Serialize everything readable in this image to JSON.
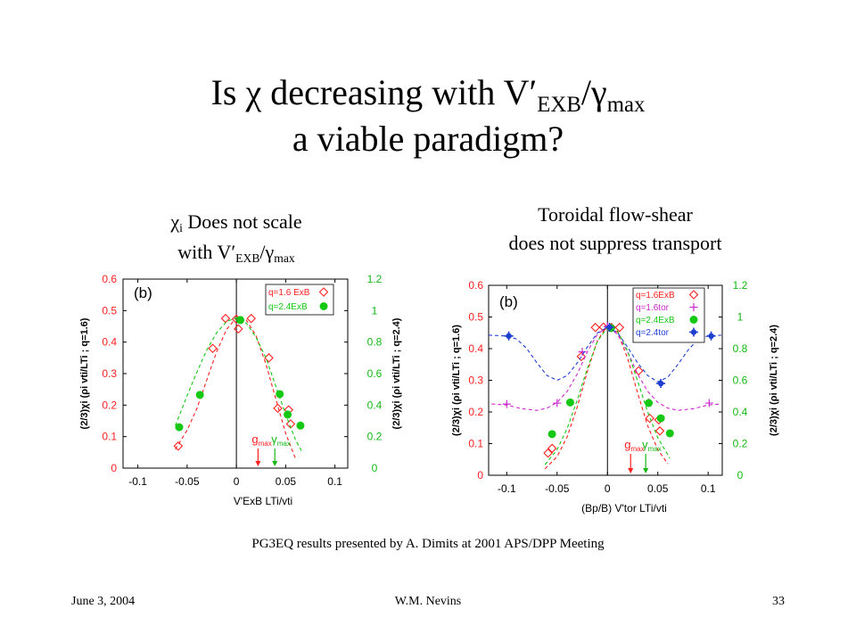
{
  "slide": {
    "title": {
      "line1_a": "Is χ decreasing with V′",
      "line1_sub1": "EXB",
      "line1_b": "/γ",
      "line1_sub2": "max",
      "line2": "a viable paradigm?"
    },
    "left_caption": {
      "a": "χ",
      "sub_i": "i",
      "b": " Does not scale",
      "c": "with V′",
      "sub_exb": "EXB",
      "d": "/γ",
      "sub_max": "max"
    },
    "right_caption": {
      "line1": "Toroidal flow-shear",
      "line2": "does not suppress transport"
    },
    "source_note": "PG3EQ results presented by A. Dimits at 2001 APS/DPP Meeting",
    "footer": {
      "date": "June 3, 2004",
      "author": "W.M. Nevins",
      "page": "33"
    }
  },
  "chart_data": [
    {
      "type": "scatter",
      "panel_label": "(b)",
      "xlabel": "V'ExB LTi/vti",
      "ylabel_left": "(2/3)χi (ρi vti/LTi ; q=1.6)",
      "ylabel_right": "(2/3)χi (ρi vti/LTi ; q=2.4)",
      "xlim": [
        -0.115,
        0.113
      ],
      "ylim_left": [
        0,
        0.6
      ],
      "ylim_right": [
        0,
        1.2
      ],
      "grid": false,
      "legend_position": "top-right",
      "vertical_line_x": 0,
      "axis_colors": {
        "left": "#ff1f1f",
        "right": "#14b814"
      },
      "x_ticks": {
        "values": [
          -0.1,
          -0.05,
          0,
          0.05,
          0.1
        ],
        "labels": [
          "-0.1",
          "-0.05",
          "0",
          "0.05",
          "0.1"
        ]
      },
      "y_ticks_left": {
        "values": [
          0,
          0.1,
          0.2,
          0.3,
          0.4,
          0.5,
          0.6
        ],
        "labels": [
          "0",
          "0.1",
          "0.2",
          "0.3",
          "0.4",
          "0.5",
          "0.6"
        ]
      },
      "y_ticks_right": {
        "values": [
          0,
          0.2,
          0.4,
          0.6,
          0.8,
          1,
          1.2
        ],
        "labels": [
          "0",
          "0.2",
          "0.4",
          "0.6",
          "0.8",
          "1",
          "1.2"
        ]
      },
      "series": [
        {
          "name": "q=1.6 ExB",
          "axis": "left",
          "color": "#ff1f1f",
          "marker": "diamond-open",
          "points": [
            [
              -0.059,
              0.07
            ],
            [
              -0.024,
              0.38
            ],
            [
              -0.011,
              0.475
            ],
            [
              0.0,
              0.473
            ],
            [
              0.002,
              0.442
            ],
            [
              0.015,
              0.475
            ],
            [
              0.033,
              0.35
            ],
            [
              0.042,
              0.19
            ],
            [
              0.053,
              0.185
            ],
            [
              0.055,
              0.14
            ]
          ],
          "fit": [
            [
              -0.062,
              0.06
            ],
            [
              -0.05,
              0.12
            ],
            [
              -0.04,
              0.19
            ],
            [
              -0.03,
              0.28
            ],
            [
              -0.02,
              0.37
            ],
            [
              -0.01,
              0.44
            ],
            [
              0,
              0.478
            ],
            [
              0.01,
              0.47
            ],
            [
              0.02,
              0.42
            ],
            [
              0.03,
              0.33
            ],
            [
              0.04,
              0.22
            ],
            [
              0.05,
              0.11
            ],
            [
              0.06,
              0.03
            ]
          ]
        },
        {
          "name": "q=2.4ExB",
          "axis": "right",
          "color": "#14c814",
          "marker": "circle-filled",
          "points": [
            [
              -0.058,
              0.26
            ],
            [
              -0.037,
              0.465
            ],
            [
              0.004,
              0.94
            ],
            [
              0.044,
              0.47
            ],
            [
              0.052,
              0.34
            ],
            [
              0.065,
              0.27
            ]
          ],
          "fit": [
            [
              -0.062,
              0.27
            ],
            [
              -0.06,
              0.3
            ],
            [
              -0.05,
              0.46
            ],
            [
              -0.04,
              0.61
            ],
            [
              -0.03,
              0.75
            ],
            [
              -0.02,
              0.86
            ],
            [
              -0.01,
              0.93
            ],
            [
              0,
              0.955
            ],
            [
              0.01,
              0.92
            ],
            [
              0.02,
              0.83
            ],
            [
              0.03,
              0.7
            ],
            [
              0.04,
              0.52
            ],
            [
              0.05,
              0.34
            ],
            [
              0.06,
              0.18
            ],
            [
              0.066,
              0.11
            ]
          ]
        }
      ],
      "annotations": [
        {
          "text": "g",
          "sub": "max",
          "x": 0.022,
          "color": "#ff1f1f"
        },
        {
          "text": "γ",
          "sub": "max",
          "x": 0.039,
          "color": "#14b814"
        }
      ]
    },
    {
      "type": "scatter",
      "panel_label": "(b)",
      "xlabel": "(Bp/B) V'tor LTi/vti",
      "ylabel_left": "(2/3)χi (ρi vti/LTi ; q=1.6)",
      "ylabel_right": "(2/3)χi (ρi vti/LTi ; q=2.4)",
      "xlim": [
        -0.118,
        0.114
      ],
      "ylim_left": [
        0,
        0.6
      ],
      "ylim_right": [
        0,
        1.2
      ],
      "grid": false,
      "legend_position": "top-right",
      "vertical_line_x": 0,
      "axis_colors": {
        "left": "#ff1f1f",
        "right": "#14b814"
      },
      "x_ticks": {
        "values": [
          -0.1,
          -0.05,
          0,
          0.05,
          0.1
        ],
        "labels": [
          "-0.1",
          "-0.05",
          "0",
          "0.05",
          "0.1"
        ]
      },
      "y_ticks_left": {
        "values": [
          0,
          0.1,
          0.2,
          0.3,
          0.4,
          0.5,
          0.6
        ],
        "labels": [
          "0",
          "0.1",
          "0.2",
          "0.3",
          "0.4",
          "0.5",
          "0.6"
        ]
      },
      "y_ticks_right": {
        "values": [
          0,
          0.2,
          0.4,
          0.6,
          0.8,
          1,
          1.2
        ],
        "labels": [
          "0",
          "0.2",
          "0.4",
          "0.6",
          "0.8",
          "1",
          "1.2"
        ]
      },
      "series": [
        {
          "name": "q=1.6ExB",
          "axis": "left",
          "color": "#ff1f1f",
          "marker": "diamond-open",
          "points": [
            [
              -0.059,
              0.07
            ],
            [
              -0.055,
              0.085
            ],
            [
              -0.026,
              0.375
            ],
            [
              -0.012,
              0.467
            ],
            [
              -0.004,
              0.468
            ],
            [
              0.004,
              0.467
            ],
            [
              0.012,
              0.467
            ],
            [
              0.031,
              0.33
            ],
            [
              0.042,
              0.18
            ],
            [
              0.051,
              0.175
            ],
            [
              0.052,
              0.14
            ]
          ],
          "fit": [
            [
              -0.062,
              0.02
            ],
            [
              -0.05,
              0.059
            ],
            [
              -0.04,
              0.122
            ],
            [
              -0.03,
              0.216
            ],
            [
              -0.02,
              0.328
            ],
            [
              -0.01,
              0.425
            ],
            [
              0,
              0.474
            ],
            [
              0.01,
              0.452
            ],
            [
              0.02,
              0.37
            ],
            [
              0.03,
              0.26
            ],
            [
              0.04,
              0.156
            ],
            [
              0.05,
              0.081
            ],
            [
              0.06,
              0.036
            ]
          ]
        },
        {
          "name": "q=1.6tor",
          "axis": "left",
          "color": "#cc2acc",
          "marker": "plus",
          "points": [
            [
              -0.1,
              0.225
            ],
            [
              -0.05,
              0.228
            ],
            [
              -0.025,
              0.39
            ],
            [
              0.0,
              0.47
            ],
            [
              0.041,
              0.23
            ],
            [
              0.101,
              0.228
            ]
          ],
          "fit": [
            [
              -0.115,
              0.225
            ],
            [
              -0.1,
              0.222
            ],
            [
              -0.085,
              0.21
            ],
            [
              -0.07,
              0.205
            ],
            [
              -0.06,
              0.212
            ],
            [
              -0.05,
              0.23
            ],
            [
              -0.04,
              0.265
            ],
            [
              -0.03,
              0.32
            ],
            [
              -0.02,
              0.39
            ],
            [
              -0.01,
              0.445
            ],
            [
              0,
              0.47
            ],
            [
              0.01,
              0.445
            ],
            [
              0.02,
              0.39
            ],
            [
              0.03,
              0.32
            ],
            [
              0.04,
              0.265
            ],
            [
              0.05,
              0.23
            ],
            [
              0.06,
              0.212
            ],
            [
              0.07,
              0.205
            ],
            [
              0.085,
              0.21
            ],
            [
              0.1,
              0.222
            ],
            [
              0.112,
              0.225
            ]
          ]
        },
        {
          "name": "q=2.4ExB",
          "axis": "right",
          "color": "#14c814",
          "marker": "circle-filled",
          "points": [
            [
              -0.055,
              0.26
            ],
            [
              -0.037,
              0.46
            ],
            [
              0.0035,
              0.93
            ],
            [
              0.041,
              0.456
            ],
            [
              0.053,
              0.36
            ],
            [
              0.062,
              0.265
            ]
          ],
          "fit": [
            [
              -0.062,
              0.067
            ],
            [
              -0.05,
              0.162
            ],
            [
              -0.04,
              0.296
            ],
            [
              -0.03,
              0.476
            ],
            [
              -0.02,
              0.675
            ],
            [
              -0.01,
              0.846
            ],
            [
              0,
              0.934
            ],
            [
              0.01,
              0.912
            ],
            [
              0.02,
              0.785
            ],
            [
              0.03,
              0.596
            ],
            [
              0.04,
              0.4
            ],
            [
              0.05,
              0.236
            ],
            [
              0.062,
              0.107
            ]
          ]
        },
        {
          "name": "q=2.4tor",
          "axis": "right",
          "color": "#1f3fd0",
          "marker": "star-filled",
          "points": [
            [
              -0.098,
              0.88
            ],
            [
              0.002,
              0.935
            ],
            [
              0.053,
              0.58
            ],
            [
              0.103,
              0.88
            ]
          ],
          "fit": [
            [
              -0.118,
              0.885
            ],
            [
              -0.1,
              0.88
            ],
            [
              -0.09,
              0.86
            ],
            [
              -0.08,
              0.8
            ],
            [
              -0.07,
              0.71
            ],
            [
              -0.06,
              0.63
            ],
            [
              -0.05,
              0.6
            ],
            [
              -0.04,
              0.63
            ],
            [
              -0.03,
              0.71
            ],
            [
              -0.02,
              0.81
            ],
            [
              -0.01,
              0.9
            ],
            [
              0,
              0.935
            ],
            [
              0.01,
              0.9
            ],
            [
              0.02,
              0.81
            ],
            [
              0.03,
              0.71
            ],
            [
              0.04,
              0.63
            ],
            [
              0.05,
              0.59
            ],
            [
              0.06,
              0.62
            ],
            [
              0.07,
              0.7
            ],
            [
              0.08,
              0.79
            ],
            [
              0.09,
              0.86
            ],
            [
              0.1,
              0.88
            ],
            [
              0.113,
              0.885
            ]
          ]
        }
      ],
      "annotations": [
        {
          "text": "g",
          "sub": "max",
          "x": 0.023,
          "color": "#ff1f1f"
        },
        {
          "text": "γ",
          "sub": "max",
          "x": 0.038,
          "color": "#14b814"
        }
      ]
    }
  ]
}
